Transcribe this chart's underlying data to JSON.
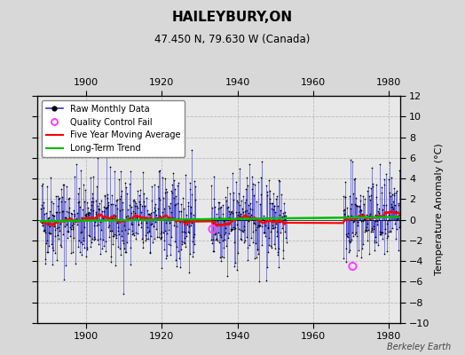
{
  "title": "HAILEYBURY,ON",
  "subtitle": "47.450 N, 79.630 W (Canada)",
  "ylabel": "Temperature Anomaly (°C)",
  "watermark": "Berkeley Earth",
  "xlim": [
    1887,
    1983
  ],
  "ylim": [
    -10,
    12
  ],
  "yticks": [
    -10,
    -8,
    -6,
    -4,
    -2,
    0,
    2,
    4,
    6,
    8,
    10,
    12
  ],
  "xticks": [
    1900,
    1920,
    1940,
    1960,
    1980
  ],
  "bg_color": "#d8d8d8",
  "plot_bg_color": "#e8e8e8",
  "grid_color": "#bbbbbb",
  "bar_color": "#3333cc",
  "dot_color": "#000000",
  "ma_color": "#ff0000",
  "trend_color": "#00bb00",
  "qc_color": "#ff44ff",
  "data_start_year": 1888,
  "data_end_year": 1982,
  "gap1_start": 1929,
  "gap1_end": 1932,
  "gap2_start": 1953,
  "gap2_end": 1967,
  "seed": 42,
  "noise_std": 2.2,
  "qc_years": [
    1933.4,
    1970.5
  ],
  "qc_vals": [
    -0.9,
    -4.5
  ]
}
